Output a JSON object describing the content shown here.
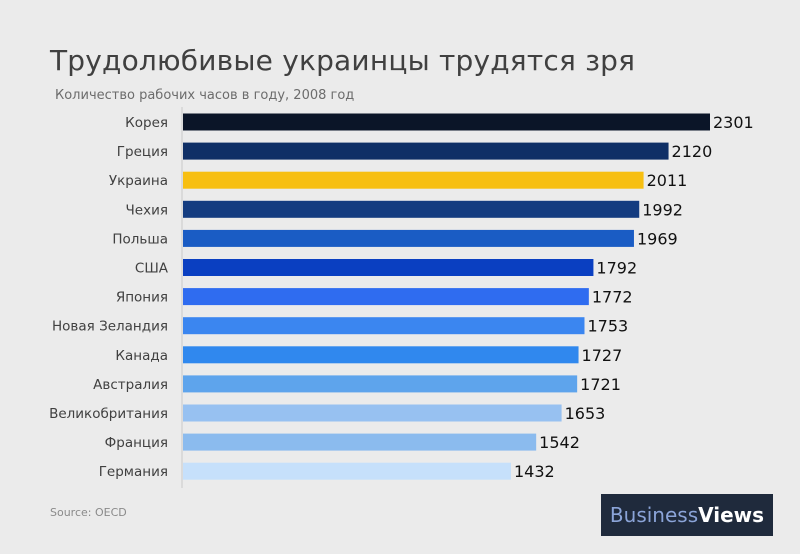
{
  "chart_data": {
    "type": "bar",
    "orientation": "horizontal",
    "title": "Трудолюбивые украинцы трудятся зря",
    "subtitle": "Количество рабочих часов в году, 2008 год",
    "xlabel": "",
    "ylabel": "",
    "xlim": [
      0,
      2301
    ],
    "grid": false,
    "legend": "none",
    "categories": [
      "Корея",
      "Греция",
      "Украина",
      "Чехия",
      "Польша",
      "США",
      "Япония",
      "Новая Зеландия",
      "Канада",
      "Австралия",
      "Великобритания",
      "Франция",
      "Германия"
    ],
    "values": [
      2301,
      2120,
      2011,
      1992,
      1969,
      1792,
      1772,
      1753,
      1727,
      1721,
      1653,
      1542,
      1432
    ],
    "colors": [
      "#0b1528",
      "#0f2f66",
      "#f7bf12",
      "#143c80",
      "#1a5cc4",
      "#0a3fc1",
      "#2f6cf0",
      "#3b86f0",
      "#3088ee",
      "#5ea4ec",
      "#97c1f1",
      "#8bbbee",
      "#c6e0fb"
    ]
  },
  "footer": {
    "source": "Source: OECD",
    "logo_part1": "Business",
    "logo_part2": "Views"
  },
  "colors": {
    "background": "#ebebeb",
    "axis": "#c8c8c8",
    "logo_bg": "#1f2a3c",
    "logo_accent": "#8ba4d8"
  }
}
